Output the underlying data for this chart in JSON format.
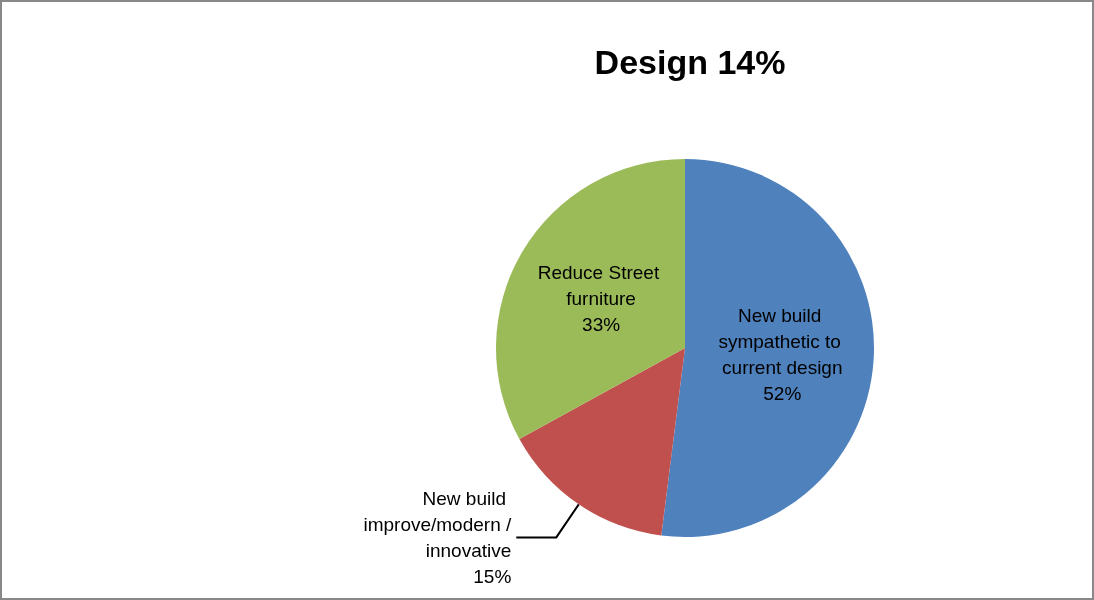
{
  "chart_data": {
    "type": "pie",
    "title": "Design 14%",
    "categories": [
      "New build sympathetic to current design",
      "New build improve/modern /innovative",
      "Reduce Street furniture"
    ],
    "values": [
      52,
      15,
      33
    ],
    "colors": [
      "#4f81bd",
      "#c0504d",
      "#9bbb59"
    ],
    "value_labels": [
      "52%",
      "15%",
      "33%"
    ],
    "legend": false
  }
}
